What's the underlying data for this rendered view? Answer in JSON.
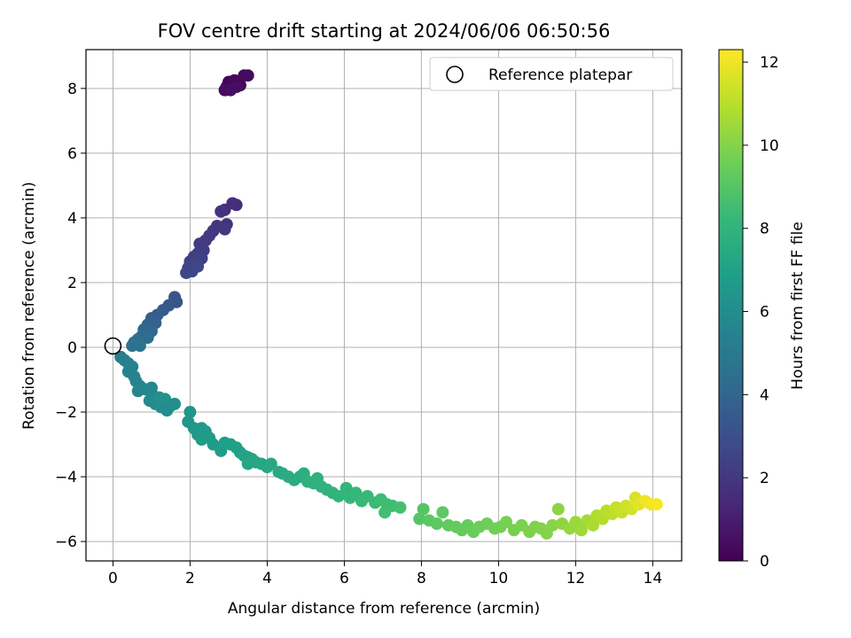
{
  "chart_data": {
    "type": "scatter",
    "title": "FOV centre drift starting at 2024/06/06 06:50:56",
    "xlabel": "Angular distance from reference (arcmin)",
    "ylabel": "Rotation from reference (arcmin)",
    "xlim": [
      -0.7,
      14.75
    ],
    "ylim": [
      -6.6,
      9.2
    ],
    "xticks": [
      0,
      2,
      4,
      6,
      8,
      10,
      12,
      14
    ],
    "yticks": [
      -6,
      -4,
      -2,
      0,
      2,
      4,
      6,
      8
    ],
    "grid": true,
    "legend": {
      "position": "top-right",
      "entries": [
        "Reference platepar"
      ]
    },
    "reference_point": {
      "label": "Reference platepar",
      "x": 0,
      "y": 0
    },
    "colorbar": {
      "label": "Hours from first FF file",
      "colormap": "viridis",
      "range": [
        0,
        12.3
      ],
      "ticks": [
        0,
        2,
        4,
        6,
        8,
        10,
        12
      ]
    },
    "color_encoding": "hours",
    "points": [
      {
        "x": 2.95,
        "y": 8.05,
        "hours": 0.05
      },
      {
        "x": 3.0,
        "y": 8.2,
        "hours": 0.1
      },
      {
        "x": 3.05,
        "y": 8.15,
        "hours": 0.15
      },
      {
        "x": 3.15,
        "y": 8.25,
        "hours": 0.2
      },
      {
        "x": 3.3,
        "y": 8.1,
        "hours": 0.25
      },
      {
        "x": 3.4,
        "y": 8.4,
        "hours": 0.3
      },
      {
        "x": 3.5,
        "y": 8.4,
        "hours": 0.35
      },
      {
        "x": 2.9,
        "y": 7.95,
        "hours": 0.4
      },
      {
        "x": 3.2,
        "y": 8.05,
        "hours": 0.45
      },
      {
        "x": 3.05,
        "y": 7.95,
        "hours": 0.5
      },
      {
        "x": 3.2,
        "y": 4.4,
        "hours": 1.6
      },
      {
        "x": 3.1,
        "y": 4.45,
        "hours": 1.65
      },
      {
        "x": 2.9,
        "y": 4.25,
        "hours": 1.7
      },
      {
        "x": 2.95,
        "y": 3.8,
        "hours": 1.8
      },
      {
        "x": 2.8,
        "y": 4.2,
        "hours": 1.85
      },
      {
        "x": 2.7,
        "y": 3.75,
        "hours": 1.9
      },
      {
        "x": 2.9,
        "y": 3.65,
        "hours": 1.95
      },
      {
        "x": 2.6,
        "y": 3.6,
        "hours": 2.0
      },
      {
        "x": 2.5,
        "y": 3.45,
        "hours": 2.05
      },
      {
        "x": 2.4,
        "y": 3.3,
        "hours": 2.1
      },
      {
        "x": 2.25,
        "y": 3.2,
        "hours": 2.15
      },
      {
        "x": 2.35,
        "y": 3.0,
        "hours": 2.2
      },
      {
        "x": 2.2,
        "y": 2.9,
        "hours": 2.25
      },
      {
        "x": 2.1,
        "y": 2.8,
        "hours": 2.3
      },
      {
        "x": 2.3,
        "y": 2.75,
        "hours": 2.35
      },
      {
        "x": 2.0,
        "y": 2.65,
        "hours": 2.4
      },
      {
        "x": 2.15,
        "y": 2.6,
        "hours": 2.45
      },
      {
        "x": 1.95,
        "y": 2.45,
        "hours": 2.5
      },
      {
        "x": 2.05,
        "y": 2.35,
        "hours": 2.55
      },
      {
        "x": 1.9,
        "y": 2.3,
        "hours": 2.6
      },
      {
        "x": 2.2,
        "y": 2.5,
        "hours": 2.65
      },
      {
        "x": 1.6,
        "y": 1.55,
        "hours": 3.2
      },
      {
        "x": 1.65,
        "y": 1.4,
        "hours": 3.3
      },
      {
        "x": 1.45,
        "y": 1.3,
        "hours": 3.4
      },
      {
        "x": 1.3,
        "y": 1.15,
        "hours": 3.5
      },
      {
        "x": 1.15,
        "y": 1.0,
        "hours": 3.6
      },
      {
        "x": 1.0,
        "y": 0.9,
        "hours": 3.7
      },
      {
        "x": 1.1,
        "y": 0.75,
        "hours": 3.8
      },
      {
        "x": 0.9,
        "y": 0.7,
        "hours": 3.9
      },
      {
        "x": 0.8,
        "y": 0.55,
        "hours": 4.0
      },
      {
        "x": 1.0,
        "y": 0.5,
        "hours": 4.1
      },
      {
        "x": 0.75,
        "y": 0.35,
        "hours": 4.2
      },
      {
        "x": 0.9,
        "y": 0.3,
        "hours": 4.3
      },
      {
        "x": 0.65,
        "y": 0.25,
        "hours": 4.4
      },
      {
        "x": 0.55,
        "y": 0.15,
        "hours": 4.5
      },
      {
        "x": 0.5,
        "y": 0.05,
        "hours": 4.6
      },
      {
        "x": 0.7,
        "y": 0.05,
        "hours": 4.7
      },
      {
        "x": 0.2,
        "y": -0.3,
        "hours": 5.2
      },
      {
        "x": 0.3,
        "y": -0.4,
        "hours": 5.3
      },
      {
        "x": 0.4,
        "y": -0.5,
        "hours": 5.35
      },
      {
        "x": 0.5,
        "y": -0.6,
        "hours": 5.4
      },
      {
        "x": 0.4,
        "y": -0.75,
        "hours": 5.45
      },
      {
        "x": 0.55,
        "y": -0.9,
        "hours": 5.5
      },
      {
        "x": 0.6,
        "y": -1.05,
        "hours": 5.55
      },
      {
        "x": 0.7,
        "y": -1.2,
        "hours": 5.6
      },
      {
        "x": 0.65,
        "y": -1.35,
        "hours": 5.65
      },
      {
        "x": 0.85,
        "y": -1.3,
        "hours": 5.7
      },
      {
        "x": 1.0,
        "y": -1.25,
        "hours": 5.75
      },
      {
        "x": 1.05,
        "y": -1.5,
        "hours": 5.8
      },
      {
        "x": 0.95,
        "y": -1.65,
        "hours": 5.85
      },
      {
        "x": 1.1,
        "y": -1.75,
        "hours": 5.9
      },
      {
        "x": 1.25,
        "y": -1.85,
        "hours": 5.95
      },
      {
        "x": 1.4,
        "y": -1.95,
        "hours": 6.0
      },
      {
        "x": 1.5,
        "y": -1.8,
        "hours": 6.05
      },
      {
        "x": 1.6,
        "y": -1.75,
        "hours": 6.1
      },
      {
        "x": 1.35,
        "y": -1.6,
        "hours": 6.15
      },
      {
        "x": 1.2,
        "y": -1.55,
        "hours": 6.2
      },
      {
        "x": 2.0,
        "y": -2.0,
        "hours": 6.4
      },
      {
        "x": 1.95,
        "y": -2.3,
        "hours": 6.45
      },
      {
        "x": 2.1,
        "y": -2.5,
        "hours": 6.5
      },
      {
        "x": 2.2,
        "y": -2.7,
        "hours": 6.55
      },
      {
        "x": 2.3,
        "y": -2.5,
        "hours": 6.6
      },
      {
        "x": 2.4,
        "y": -2.6,
        "hours": 6.65
      },
      {
        "x": 2.5,
        "y": -2.8,
        "hours": 6.7
      },
      {
        "x": 2.3,
        "y": -2.85,
        "hours": 6.72
      },
      {
        "x": 2.6,
        "y": -3.0,
        "hours": 6.75
      },
      {
        "x": 2.8,
        "y": -3.2,
        "hours": 6.8
      },
      {
        "x": 2.9,
        "y": -2.95,
        "hours": 6.85
      },
      {
        "x": 3.05,
        "y": -3.0,
        "hours": 6.9
      },
      {
        "x": 3.2,
        "y": -3.1,
        "hours": 6.95
      },
      {
        "x": 3.3,
        "y": -3.25,
        "hours": 7.0
      },
      {
        "x": 3.4,
        "y": -3.35,
        "hours": 7.05
      },
      {
        "x": 3.5,
        "y": -3.4,
        "hours": 7.1
      },
      {
        "x": 3.6,
        "y": -3.45,
        "hours": 7.15
      },
      {
        "x": 3.5,
        "y": -3.6,
        "hours": 7.2
      },
      {
        "x": 3.7,
        "y": -3.55,
        "hours": 7.25
      },
      {
        "x": 3.85,
        "y": -3.6,
        "hours": 7.3
      },
      {
        "x": 4.0,
        "y": -3.7,
        "hours": 7.35
      },
      {
        "x": 4.1,
        "y": -3.6,
        "hours": 7.4
      },
      {
        "x": 4.3,
        "y": -3.85,
        "hours": 7.45
      },
      {
        "x": 4.4,
        "y": -3.9,
        "hours": 7.5
      },
      {
        "x": 4.55,
        "y": -4.0,
        "hours": 7.55
      },
      {
        "x": 4.7,
        "y": -4.1,
        "hours": 7.6
      },
      {
        "x": 4.85,
        "y": -4.0,
        "hours": 7.65
      },
      {
        "x": 4.95,
        "y": -3.9,
        "hours": 7.7
      },
      {
        "x": 5.05,
        "y": -4.15,
        "hours": 7.75
      },
      {
        "x": 5.2,
        "y": -4.2,
        "hours": 7.8
      },
      {
        "x": 5.3,
        "y": -4.05,
        "hours": 7.85
      },
      {
        "x": 5.4,
        "y": -4.3,
        "hours": 7.9
      },
      {
        "x": 5.55,
        "y": -4.4,
        "hours": 7.95
      },
      {
        "x": 5.7,
        "y": -4.5,
        "hours": 8.0
      },
      {
        "x": 5.85,
        "y": -4.6,
        "hours": 8.05
      },
      {
        "x": 6.05,
        "y": -4.35,
        "hours": 8.1
      },
      {
        "x": 6.15,
        "y": -4.65,
        "hours": 8.15
      },
      {
        "x": 6.3,
        "y": -4.5,
        "hours": 8.2
      },
      {
        "x": 6.45,
        "y": -4.75,
        "hours": 8.25
      },
      {
        "x": 6.6,
        "y": -4.6,
        "hours": 8.3
      },
      {
        "x": 6.8,
        "y": -4.8,
        "hours": 8.35
      },
      {
        "x": 6.95,
        "y": -4.7,
        "hours": 8.4
      },
      {
        "x": 7.1,
        "y": -4.85,
        "hours": 8.45
      },
      {
        "x": 7.25,
        "y": -4.9,
        "hours": 8.5
      },
      {
        "x": 7.05,
        "y": -5.1,
        "hours": 8.55
      },
      {
        "x": 7.45,
        "y": -4.95,
        "hours": 8.6
      },
      {
        "x": 7.95,
        "y": -5.3,
        "hours": 9.0
      },
      {
        "x": 8.05,
        "y": -5.0,
        "hours": 9.05
      },
      {
        "x": 8.2,
        "y": -5.35,
        "hours": 9.1
      },
      {
        "x": 8.4,
        "y": -5.45,
        "hours": 9.15
      },
      {
        "x": 8.55,
        "y": -5.1,
        "hours": 9.2
      },
      {
        "x": 8.7,
        "y": -5.5,
        "hours": 9.25
      },
      {
        "x": 8.9,
        "y": -5.55,
        "hours": 9.3
      },
      {
        "x": 9.05,
        "y": -5.65,
        "hours": 9.35
      },
      {
        "x": 9.2,
        "y": -5.5,
        "hours": 9.4
      },
      {
        "x": 9.35,
        "y": -5.7,
        "hours": 9.45
      },
      {
        "x": 9.5,
        "y": -5.55,
        "hours": 9.5
      },
      {
        "x": 9.7,
        "y": -5.45,
        "hours": 9.55
      },
      {
        "x": 9.9,
        "y": -5.6,
        "hours": 9.6
      },
      {
        "x": 10.05,
        "y": -5.55,
        "hours": 9.65
      },
      {
        "x": 10.2,
        "y": -5.4,
        "hours": 9.7
      },
      {
        "x": 10.4,
        "y": -5.65,
        "hours": 9.75
      },
      {
        "x": 10.6,
        "y": -5.5,
        "hours": 9.8
      },
      {
        "x": 10.8,
        "y": -5.7,
        "hours": 9.85
      },
      {
        "x": 10.95,
        "y": -5.55,
        "hours": 9.9
      },
      {
        "x": 11.1,
        "y": -5.6,
        "hours": 9.95
      },
      {
        "x": 11.25,
        "y": -5.75,
        "hours": 10.0
      },
      {
        "x": 11.4,
        "y": -5.5,
        "hours": 10.05
      },
      {
        "x": 11.55,
        "y": -5.0,
        "hours": 10.1
      },
      {
        "x": 11.65,
        "y": -5.45,
        "hours": 10.2
      },
      {
        "x": 11.85,
        "y": -5.6,
        "hours": 10.3
      },
      {
        "x": 12.0,
        "y": -5.4,
        "hours": 10.4
      },
      {
        "x": 12.15,
        "y": -5.65,
        "hours": 10.5
      },
      {
        "x": 12.3,
        "y": -5.35,
        "hours": 10.6
      },
      {
        "x": 12.45,
        "y": -5.5,
        "hours": 10.7
      },
      {
        "x": 12.55,
        "y": -5.2,
        "hours": 10.8
      },
      {
        "x": 12.7,
        "y": -5.3,
        "hours": 10.9
      },
      {
        "x": 12.8,
        "y": -5.05,
        "hours": 11.0
      },
      {
        "x": 12.95,
        "y": -5.15,
        "hours": 11.1
      },
      {
        "x": 13.05,
        "y": -4.95,
        "hours": 11.2
      },
      {
        "x": 13.2,
        "y": -5.1,
        "hours": 11.3
      },
      {
        "x": 13.3,
        "y": -4.9,
        "hours": 11.4
      },
      {
        "x": 13.45,
        "y": -5.0,
        "hours": 11.5
      },
      {
        "x": 13.55,
        "y": -4.65,
        "hours": 11.6
      },
      {
        "x": 13.65,
        "y": -4.85,
        "hours": 11.8
      },
      {
        "x": 13.8,
        "y": -4.75,
        "hours": 12.0
      },
      {
        "x": 13.95,
        "y": -4.85,
        "hours": 12.1
      },
      {
        "x": 14.1,
        "y": -4.85,
        "hours": 12.2
      }
    ]
  }
}
